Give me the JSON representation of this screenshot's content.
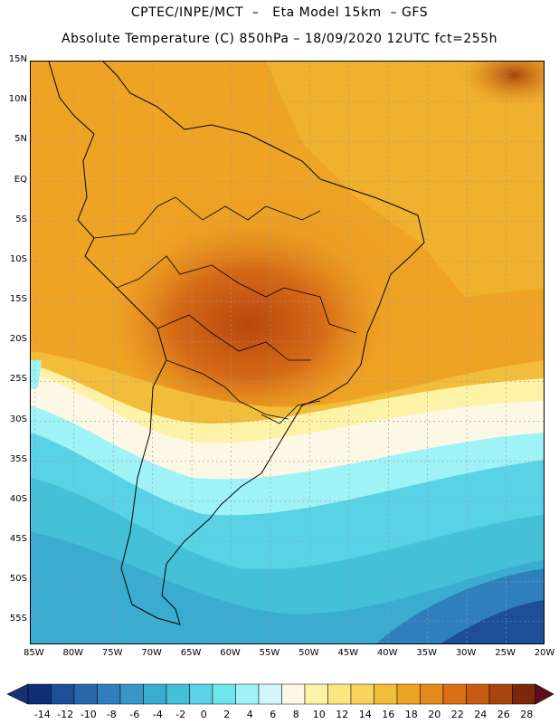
{
  "header": {
    "title": "CPTEC/INPE/MCT  –   Eta Model 15km  – GFS",
    "subtitle": "Absolute Temperature (C) 850hPa – 18/09/2020 12UTC fct=255h"
  },
  "map": {
    "lat_labels": [
      "15N",
      "10N",
      "5N",
      "EQ",
      "5S",
      "10S",
      "15S",
      "20S",
      "25S",
      "30S",
      "35S",
      "40S",
      "45S",
      "50S",
      "55S"
    ],
    "lon_labels": [
      "85W",
      "80W",
      "75W",
      "70W",
      "65W",
      "60W",
      "55W",
      "50W",
      "45W",
      "40W",
      "35W",
      "30W",
      "25W",
      "20W"
    ],
    "lat_range": [
      15,
      -58
    ],
    "lon_range": [
      -85.5,
      -20
    ]
  },
  "colorbar": {
    "labels": [
      "-14",
      "-12",
      "-10",
      "-8",
      "-6",
      "-4",
      "-2",
      "0",
      "2",
      "4",
      "6",
      "8",
      "10",
      "12",
      "14",
      "16",
      "18",
      "20",
      "22",
      "24",
      "26",
      "28"
    ],
    "colors": [
      "#0e2e7a",
      "#1d4f98",
      "#2b66ad",
      "#2f7fbd",
      "#3a96c8",
      "#3aaccf",
      "#44c0d9",
      "#5ad2e5",
      "#6fe6ef",
      "#9ff3f6",
      "#d2f7fb",
      "#fdf8e6",
      "#fdf3a6",
      "#fce581",
      "#f8d45c",
      "#f2bd3a",
      "#eea325",
      "#e48a1d",
      "#db6f15",
      "#c85a12",
      "#a8440e",
      "#7a2808"
    ],
    "under_color": "#1c2f76",
    "over_color": "#5e0d1c"
  }
}
